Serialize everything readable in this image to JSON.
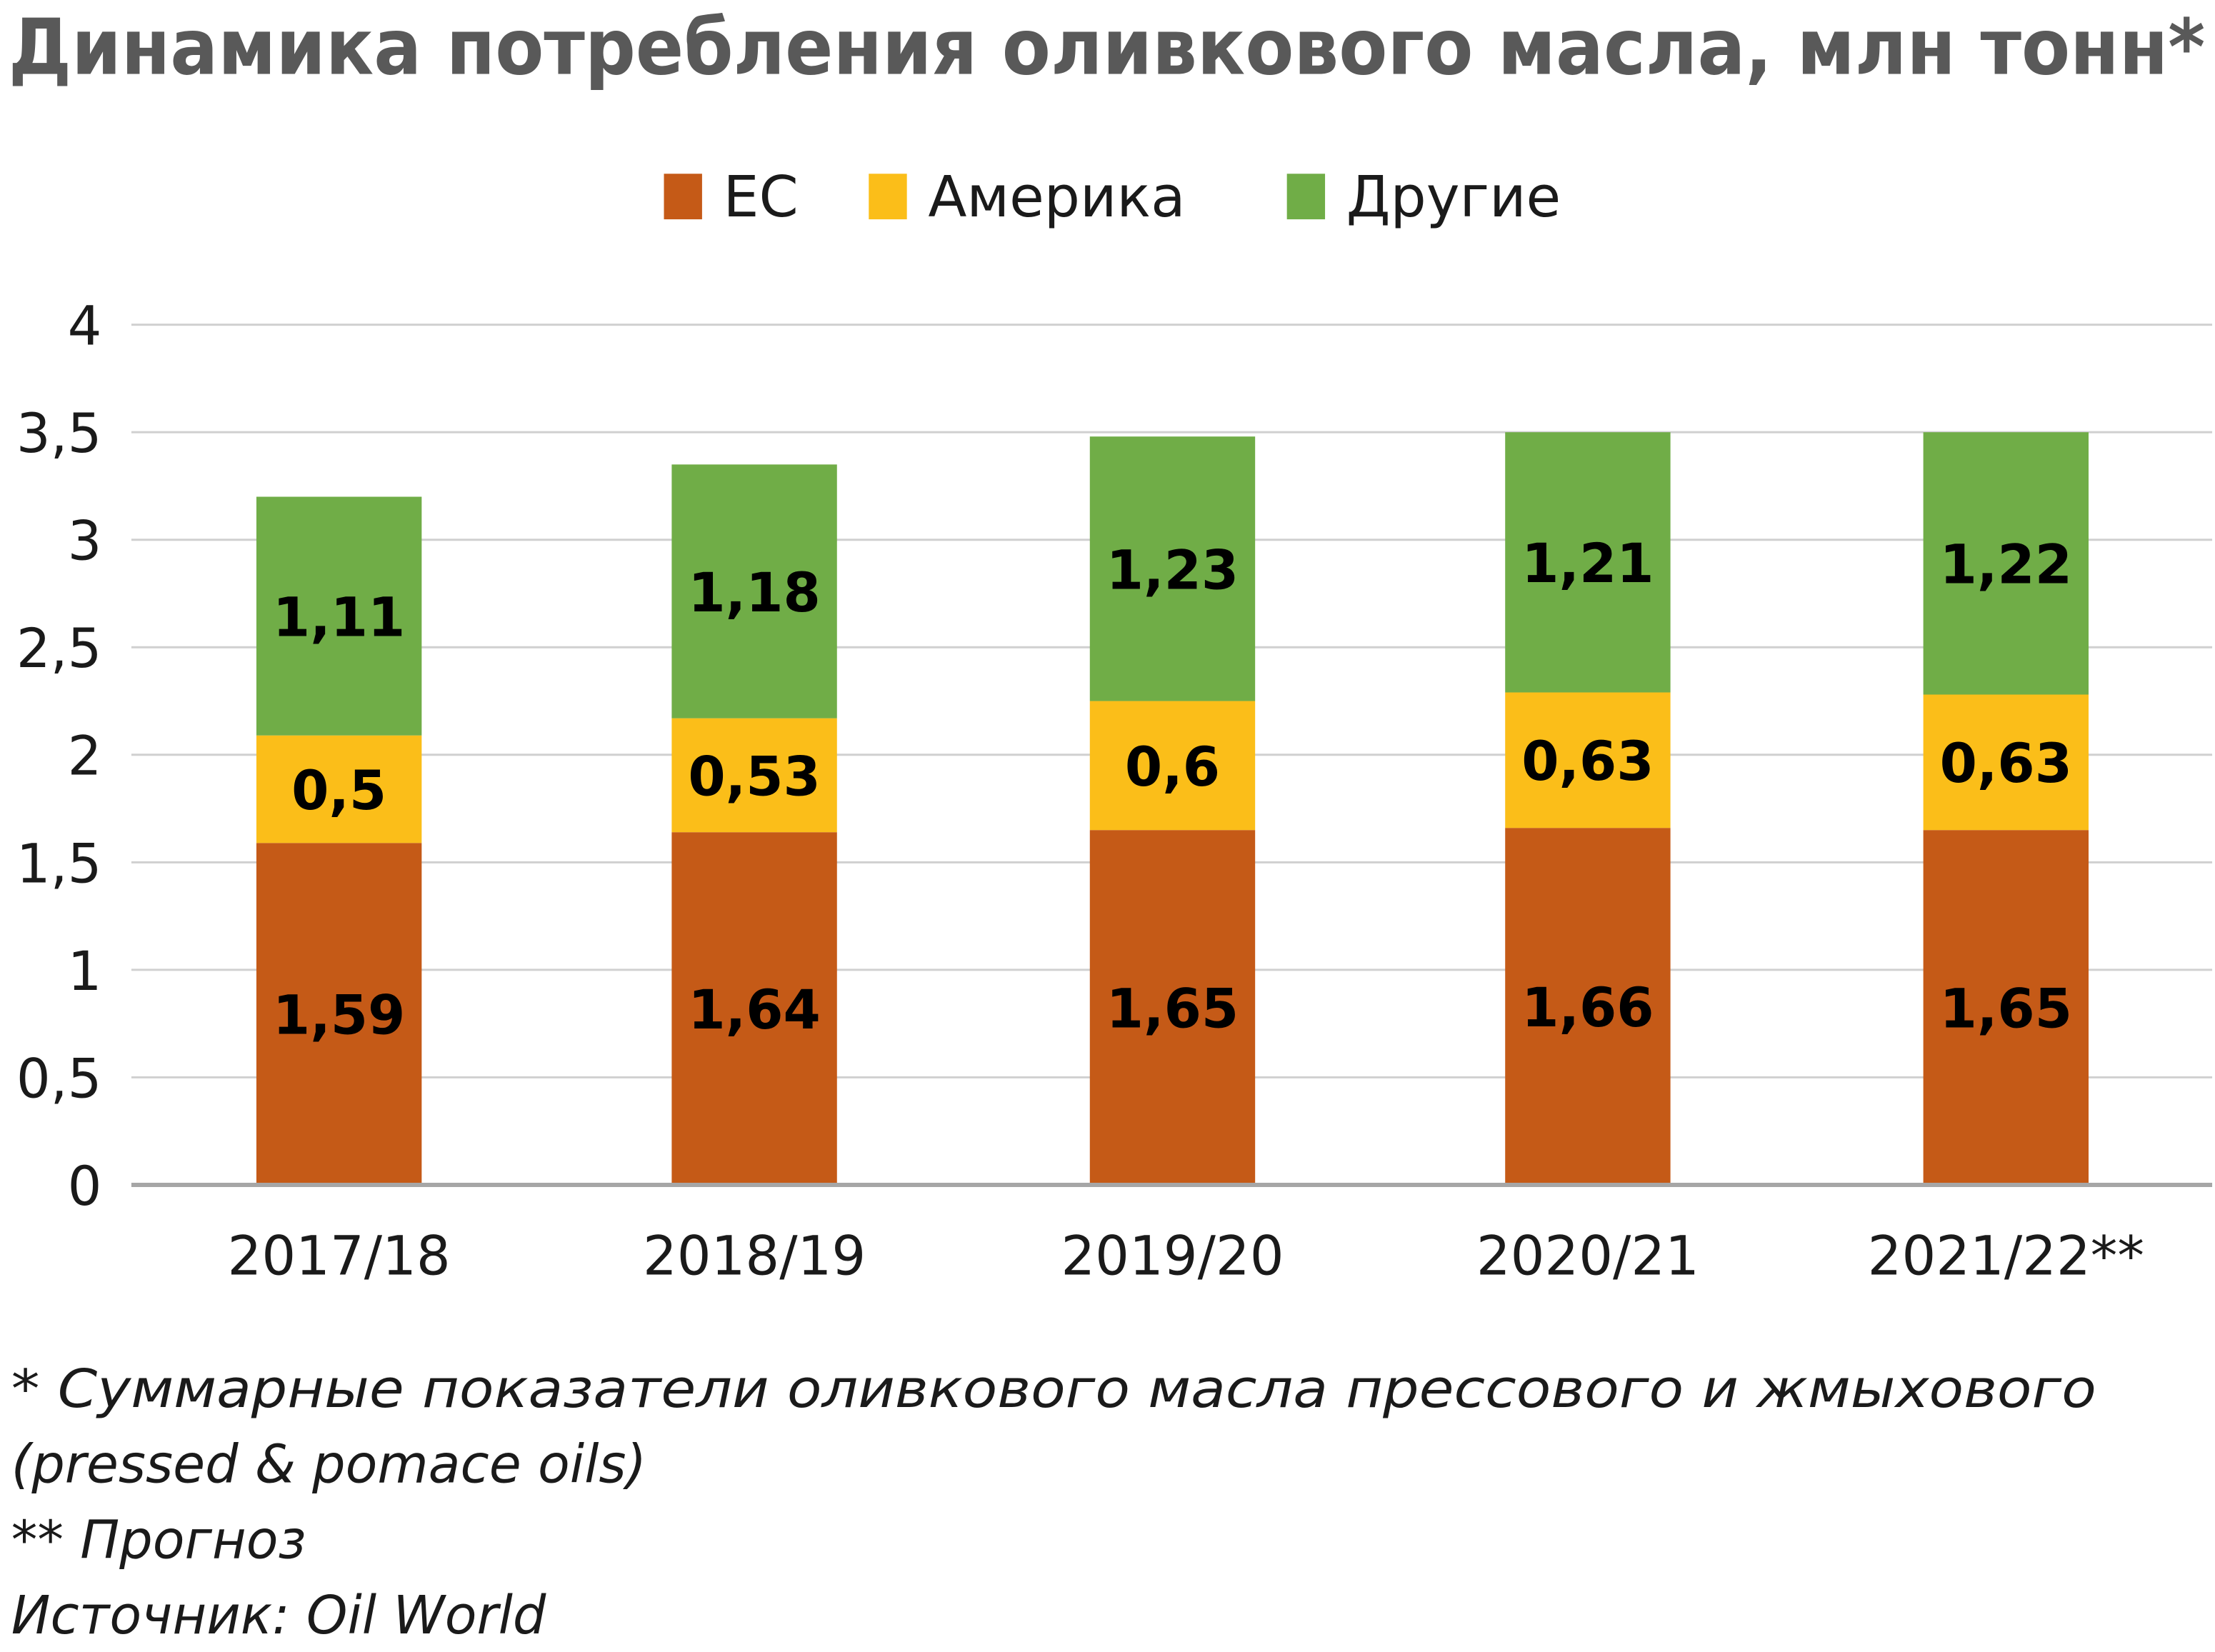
{
  "chart_data": {
    "type": "bar",
    "stacked": true,
    "title": "Динамика потребления оливкового масла, млн тонн*",
    "xlabel": "",
    "ylabel": "",
    "ylim": [
      0,
      4
    ],
    "yticks": [
      0,
      0.5,
      1,
      1.5,
      2,
      2.5,
      3,
      3.5,
      4
    ],
    "ytick_labels": [
      "0",
      "0,5",
      "1",
      "1,5",
      "2",
      "2,5",
      "3",
      "3,5",
      "4"
    ],
    "grid": true,
    "legend_position": "top-center",
    "categories": [
      "2017/18",
      "2018/19",
      "2019/20",
      "2020/21",
      "2021/22**"
    ],
    "series": [
      {
        "name": "ЕС",
        "color": "#C55A17",
        "values": [
          1.59,
          1.64,
          1.65,
          1.66,
          1.65
        ],
        "labels": [
          "1,59",
          "1,64",
          "1,65",
          "1,66",
          "1,65"
        ]
      },
      {
        "name": "Америка",
        "color": "#FBBE19",
        "values": [
          0.5,
          0.53,
          0.6,
          0.63,
          0.63
        ],
        "labels": [
          "0,5",
          "0,53",
          "0,6",
          "0,63",
          "0,63"
        ]
      },
      {
        "name": "Другие",
        "color": "#70AD47",
        "values": [
          1.11,
          1.18,
          1.23,
          1.21,
          1.22
        ],
        "labels": [
          "1,11",
          "1,18",
          "1,23",
          "1,21",
          "1,22"
        ]
      }
    ]
  },
  "footnotes": [
    "* Суммарные показатели оливкового масла прессового и жмыхового",
    "(pressed & pomace oils)",
    "** Прогноз",
    "Источник: Oil World"
  ]
}
